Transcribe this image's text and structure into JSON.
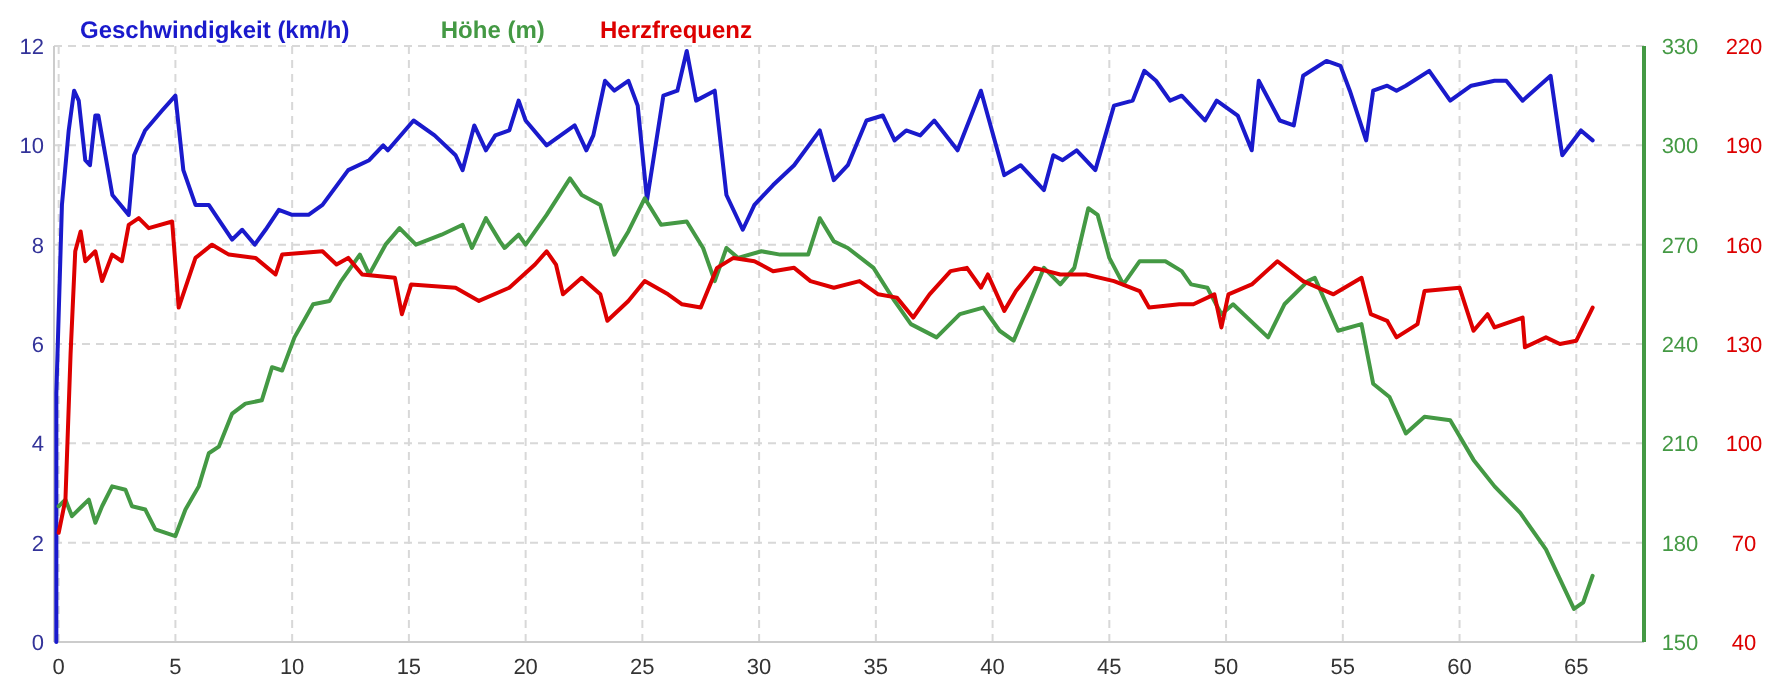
{
  "chart_data": {
    "type": "line",
    "legend": "top left",
    "grid": true,
    "line_style": "solid",
    "marker": "none",
    "xlim": [
      -0.2,
      67.9
    ],
    "xticks": [
      0,
      5,
      10,
      15,
      20,
      25,
      30,
      35,
      40,
      45,
      50,
      55,
      60,
      65
    ],
    "ylim": [
      0,
      12
    ],
    "yticks": [
      0,
      2,
      4,
      6,
      8,
      10,
      12
    ],
    "y2lim": [
      150,
      330
    ],
    "y2ticks": [
      150,
      180,
      210,
      240,
      270,
      300,
      330
    ],
    "y3lim": [
      40,
      220
    ],
    "y3ticks": [
      40,
      70,
      100,
      130,
      160,
      190,
      220
    ],
    "series": [
      {
        "name": "Geschwindigkeit (km/h)",
        "color": "#1a1acc",
        "x": [
          -0.1,
          -0.1,
          0.14,
          0.43,
          0.66,
          0.86,
          1.14,
          1.34,
          1.57,
          1.7,
          2.0,
          2.3,
          3.0,
          3.23,
          3.7,
          4.43,
          5.0,
          5.34,
          5.86,
          6.43,
          6.86,
          7.43,
          7.86,
          8.4,
          8.86,
          9.43,
          10.0,
          10.7,
          11.3,
          12.4,
          13.3,
          13.9,
          14.1,
          15.2,
          16.1,
          17.0,
          17.3,
          17.8,
          18.3,
          18.7,
          19.3,
          19.7,
          20.0,
          20.9,
          22.1,
          22.6,
          22.9,
          23.4,
          23.8,
          24.4,
          24.8,
          25.2,
          25.9,
          26.5,
          26.9,
          27.3,
          28.1,
          28.6,
          29.3,
          29.8,
          30.6,
          31.5,
          32.6,
          33.2,
          33.8,
          34.6,
          35.3,
          35.8,
          36.3,
          36.9,
          37.5,
          38.5,
          39.5,
          40.5,
          41.2,
          42.2,
          42.6,
          43.0,
          43.6,
          44.4,
          45.2,
          46.0,
          46.5,
          47.0,
          47.6,
          48.1,
          49.1,
          49.6,
          50.5,
          51.1,
          51.4,
          52.3,
          52.9,
          53.3,
          54.3,
          54.9,
          55.3,
          56.0,
          56.3,
          56.9,
          57.3,
          57.7,
          58.7,
          59.6,
          60.5,
          61.5,
          62.0,
          62.7,
          63.9,
          64.3,
          64.4,
          65.2,
          65.7
        ],
        "values": [
          0,
          5,
          8.8,
          10.3,
          11.1,
          10.9,
          9.7,
          9.6,
          10.6,
          10.6,
          9.8,
          9.0,
          8.6,
          9.8,
          10.3,
          10.7,
          11.0,
          9.5,
          8.8,
          8.8,
          8.5,
          8.1,
          8.3,
          8.0,
          8.3,
          8.7,
          8.6,
          8.6,
          8.8,
          9.5,
          9.7,
          10.0,
          9.9,
          10.5,
          10.2,
          9.8,
          9.5,
          10.4,
          9.9,
          10.2,
          10.3,
          10.9,
          10.5,
          10.0,
          10.4,
          9.9,
          10.2,
          11.3,
          11.1,
          11.3,
          10.8,
          8.9,
          11.0,
          11.1,
          11.9,
          10.9,
          11.1,
          9.0,
          8.3,
          8.8,
          9.2,
          9.6,
          10.3,
          9.3,
          9.6,
          10.5,
          10.6,
          10.1,
          10.3,
          10.2,
          10.5,
          9.9,
          11.1,
          9.4,
          9.6,
          9.1,
          9.8,
          9.7,
          9.9,
          9.5,
          10.8,
          10.9,
          11.5,
          11.3,
          10.9,
          11.0,
          10.5,
          10.9,
          10.6,
          9.9,
          11.3,
          10.5,
          10.4,
          11.4,
          11.7,
          11.6,
          11.1,
          10.1,
          11.1,
          11.2,
          11.1,
          11.2,
          11.5,
          10.9,
          11.2,
          11.3,
          11.3,
          10.9,
          11.4,
          10.1,
          9.8,
          10.3,
          10.1
        ]
      },
      {
        "name": "Höhe (m)",
        "color": "#449944",
        "axis": "y2",
        "x": [
          0,
          0.29,
          0.57,
          1.0,
          1.29,
          1.57,
          1.86,
          2.29,
          2.86,
          3.14,
          3.71,
          4.14,
          5.0,
          5.43,
          6.0,
          6.43,
          6.86,
          7.43,
          8.0,
          8.7,
          9.14,
          9.57,
          10.1,
          10.9,
          11.6,
          12.1,
          12.9,
          13.3,
          14.0,
          14.6,
          15.3,
          16.4,
          17.3,
          17.7,
          18.3,
          18.9,
          19.1,
          19.7,
          20.0,
          20.9,
          21.9,
          22.4,
          23.2,
          23.8,
          24.4,
          25.1,
          25.8,
          26.9,
          27.6,
          28.1,
          28.6,
          29.1,
          30.1,
          30.9,
          32.1,
          32.6,
          33.2,
          33.8,
          34.9,
          35.8,
          36.5,
          37.6,
          38.6,
          39.6,
          40.3,
          40.9,
          41.5,
          42.2,
          42.9,
          43.5,
          44.1,
          44.5,
          45.0,
          45.6,
          46.3,
          47.4,
          48.1,
          48.5,
          49.2,
          49.8,
          50.3,
          51.8,
          52.5,
          53.5,
          53.8,
          54.8,
          55.8,
          56.3,
          57.0,
          57.7,
          58.5,
          59.6,
          60.6,
          61.5,
          62.6,
          63.7,
          64.9,
          65.3,
          65.7
        ],
        "values": [
          191,
          193,
          188,
          191,
          193,
          186,
          191,
          197,
          196,
          191,
          190,
          184,
          182,
          190,
          197,
          207,
          209,
          219,
          222,
          223,
          233,
          232,
          242,
          252,
          253,
          259,
          267,
          261,
          270,
          275,
          270,
          273,
          276,
          269,
          278,
          271,
          269,
          273,
          270,
          279,
          290,
          285,
          282,
          267,
          274,
          284,
          276,
          277,
          269,
          259,
          269,
          266,
          268,
          267,
          267,
          278,
          271,
          269,
          263,
          253,
          246,
          242,
          249,
          251,
          244,
          241,
          251,
          263,
          258,
          263,
          281,
          279,
          266,
          258,
          265,
          265,
          262,
          258,
          257,
          249,
          252,
          242,
          252,
          259,
          260,
          244,
          246,
          228,
          224,
          213,
          218,
          217,
          205,
          197,
          189,
          178,
          160,
          162,
          170
        ]
      },
      {
        "name": "Herzfrequenz",
        "color": "#dd0000",
        "axis": "y3",
        "x": [
          0,
          0.29,
          0.51,
          0.71,
          0.94,
          1.14,
          1.57,
          1.86,
          2.29,
          2.71,
          3.0,
          3.43,
          3.86,
          4.86,
          5.14,
          5.86,
          6.57,
          7.29,
          8.43,
          9.29,
          9.57,
          11.3,
          11.9,
          12.4,
          13.0,
          14.4,
          14.7,
          15.1,
          17.0,
          18.0,
          19.3,
          20.4,
          20.9,
          21.3,
          21.6,
          22.4,
          23.2,
          23.5,
          24.4,
          25.1,
          26.1,
          26.7,
          27.5,
          28.2,
          28.9,
          29.8,
          30.6,
          31.5,
          32.2,
          33.2,
          34.3,
          35.1,
          35.9,
          36.6,
          37.3,
          38.2,
          38.9,
          39.5,
          39.8,
          40.5,
          41.0,
          41.8,
          42.9,
          44.0,
          45.2,
          46.3,
          46.7,
          48.0,
          48.6,
          49.5,
          49.8,
          50.1,
          51.1,
          52.2,
          53.3,
          54.6,
          55.8,
          56.2,
          56.9,
          57.3,
          58.2,
          58.5,
          60.0,
          60.6,
          61.2,
          61.5,
          62.7,
          62.8,
          63.7,
          64.3,
          65.0,
          65.7
        ],
        "values": [
          73,
          83,
          127,
          158,
          164,
          155,
          158,
          149,
          157,
          155,
          166,
          168,
          165,
          167,
          141,
          156,
          160,
          157,
          156,
          151,
          157,
          158,
          154,
          156,
          151,
          150,
          139,
          148,
          147,
          143,
          147,
          154,
          158,
          154,
          145,
          150,
          145,
          137,
          143,
          149,
          145,
          142,
          141,
          153,
          156,
          155,
          152,
          153,
          149,
          147,
          149,
          145,
          144,
          138,
          145,
          152,
          153,
          147,
          151,
          140,
          146,
          153,
          151,
          151,
          149,
          146,
          141,
          142,
          142,
          145,
          135,
          145,
          148,
          155,
          149,
          145,
          150,
          139,
          137,
          132,
          136,
          146,
          147,
          134,
          139,
          135,
          138,
          129,
          132,
          130,
          131,
          141
        ]
      }
    ]
  }
}
